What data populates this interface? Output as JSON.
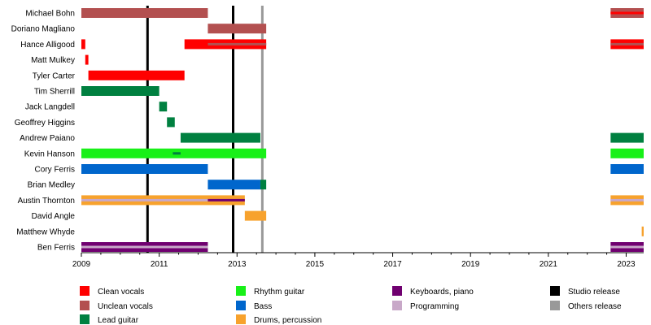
{
  "chart_data": {
    "type": "timeline",
    "xlim": [
      2009.0,
      2023.45
    ],
    "x_ticks": [
      2009,
      2011,
      2013,
      2015,
      2017,
      2019,
      2021,
      2023
    ],
    "x_tick_labels": [
      "2009",
      "2011",
      "2013",
      "2015",
      "2017",
      "2019",
      "2021",
      "2023"
    ],
    "members": [
      "Michael Bohn",
      "Doriano Magliano",
      "Hance Alligood",
      "Matt Mulkey",
      "Tyler Carter",
      "Tim Sherrill",
      "Jack Langdell",
      "Geoffrey Higgins",
      "Andrew Paiano",
      "Kevin Hanson",
      "Cory Ferris",
      "Brian Medley",
      "Austin Thornton",
      "David Angle",
      "Matthew Whyde",
      "Ben Ferris"
    ],
    "roles": [
      {
        "key": "clean",
        "label": "Clean vocals",
        "color": "#ff0000"
      },
      {
        "key": "unclean",
        "label": "Unclean vocals",
        "color": "#b35050"
      },
      {
        "key": "lead",
        "label": "Lead guitar",
        "color": "#008040"
      },
      {
        "key": "rhythm",
        "label": "Rhythm guitar",
        "color": "#18f018"
      },
      {
        "key": "bass",
        "label": "Bass",
        "color": "#0066cc"
      },
      {
        "key": "drums",
        "label": "Drums, percussion",
        "color": "#f7a22d"
      },
      {
        "key": "keys",
        "label": "Keyboards, piano",
        "color": "#700070"
      },
      {
        "key": "prog",
        "label": "Programming",
        "color": "#c8a8c8"
      },
      {
        "key": "studio",
        "label": "Studio release",
        "color": "#000000"
      },
      {
        "key": "other",
        "label": "Others release",
        "color": "#999999"
      }
    ],
    "bars": [
      {
        "member": 0,
        "start": 2009.0,
        "end": 2012.25,
        "role": "unclean"
      },
      {
        "member": 0,
        "start": 2022.6,
        "end": 2023.45,
        "role": "unclean"
      },
      {
        "member": 0,
        "start": 2022.6,
        "end": 2023.45,
        "role": "clean",
        "thin": true
      },
      {
        "member": 1,
        "start": 2012.25,
        "end": 2013.75,
        "role": "unclean"
      },
      {
        "member": 2,
        "start": 2009.0,
        "end": 2009.1,
        "role": "clean"
      },
      {
        "member": 2,
        "start": 2011.65,
        "end": 2013.75,
        "role": "clean"
      },
      {
        "member": 2,
        "start": 2012.25,
        "end": 2013.75,
        "role": "unclean",
        "thin": true
      },
      {
        "member": 2,
        "start": 2022.6,
        "end": 2023.45,
        "role": "clean"
      },
      {
        "member": 2,
        "start": 2022.6,
        "end": 2023.45,
        "role": "unclean",
        "thin": true
      },
      {
        "member": 3,
        "start": 2009.1,
        "end": 2009.18,
        "role": "clean"
      },
      {
        "member": 4,
        "start": 2009.18,
        "end": 2011.65,
        "role": "clean"
      },
      {
        "member": 5,
        "start": 2009.0,
        "end": 2011.0,
        "role": "lead"
      },
      {
        "member": 6,
        "start": 2011.0,
        "end": 2011.2,
        "role": "lead"
      },
      {
        "member": 7,
        "start": 2011.2,
        "end": 2011.4,
        "role": "lead"
      },
      {
        "member": 8,
        "start": 2011.55,
        "end": 2013.6,
        "role": "lead"
      },
      {
        "member": 8,
        "start": 2022.6,
        "end": 2023.45,
        "role": "lead"
      },
      {
        "member": 9,
        "start": 2009.0,
        "end": 2013.75,
        "role": "rhythm"
      },
      {
        "member": 9,
        "start": 2011.35,
        "end": 2011.55,
        "role": "lead",
        "thin": true
      },
      {
        "member": 9,
        "start": 2022.6,
        "end": 2023.45,
        "role": "rhythm"
      },
      {
        "member": 10,
        "start": 2009.0,
        "end": 2012.25,
        "role": "bass"
      },
      {
        "member": 10,
        "start": 2022.6,
        "end": 2023.45,
        "role": "bass"
      },
      {
        "member": 11,
        "start": 2012.25,
        "end": 2013.6,
        "role": "bass"
      },
      {
        "member": 11,
        "start": 2013.6,
        "end": 2013.75,
        "role": "lead"
      },
      {
        "member": 12,
        "start": 2009.0,
        "end": 2013.2,
        "role": "drums"
      },
      {
        "member": 12,
        "start": 2009.0,
        "end": 2012.25,
        "role": "prog",
        "thin": true
      },
      {
        "member": 12,
        "start": 2012.25,
        "end": 2013.2,
        "role": "keys",
        "thin": true
      },
      {
        "member": 12,
        "start": 2022.6,
        "end": 2023.45,
        "role": "drums"
      },
      {
        "member": 12,
        "start": 2022.6,
        "end": 2023.45,
        "role": "prog",
        "thin": true
      },
      {
        "member": 13,
        "start": 2013.2,
        "end": 2013.75,
        "role": "drums"
      },
      {
        "member": 14,
        "start": 2023.4,
        "end": 2023.45,
        "role": "drums"
      },
      {
        "member": 15,
        "start": 2009.0,
        "end": 2012.25,
        "role": "keys"
      },
      {
        "member": 15,
        "start": 2009.0,
        "end": 2012.25,
        "role": "prog",
        "thin": true
      },
      {
        "member": 15,
        "start": 2022.6,
        "end": 2023.45,
        "role": "keys"
      },
      {
        "member": 15,
        "start": 2022.6,
        "end": 2023.45,
        "role": "prog",
        "thin": true
      }
    ],
    "releases": [
      {
        "date": 2010.7,
        "type": "studio"
      },
      {
        "date": 2012.9,
        "type": "studio"
      },
      {
        "date": 2013.65,
        "type": "other"
      }
    ]
  }
}
